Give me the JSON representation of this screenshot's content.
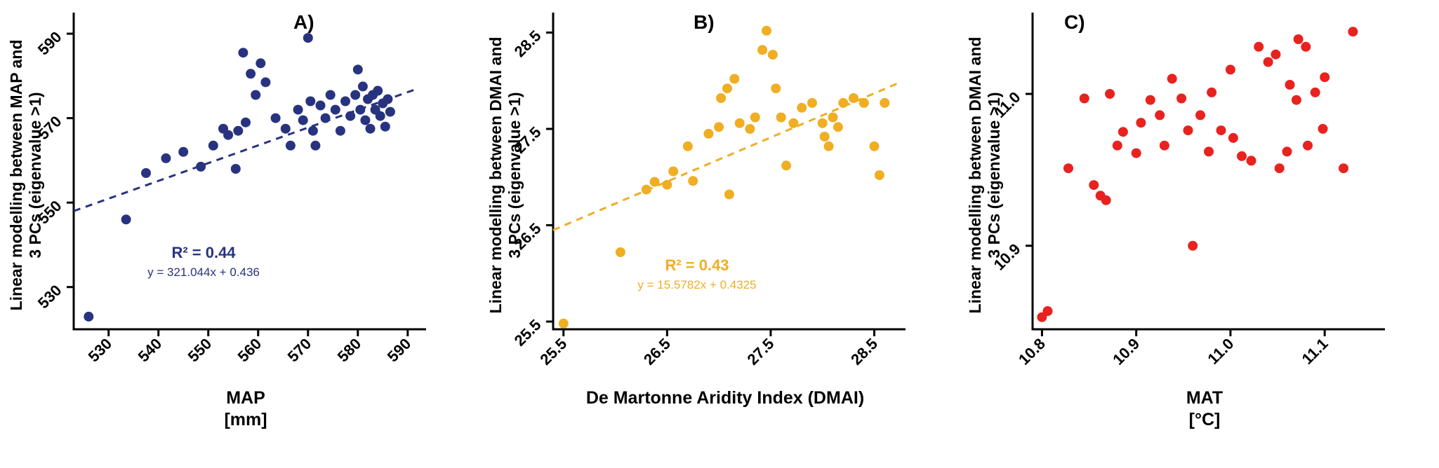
{
  "figure": {
    "background": "#ffffff"
  },
  "chart_data": [
    {
      "type": "scatter",
      "panel_label": "A)",
      "point_color": "#283380",
      "ylabel_line1": "Linear modelling between MAP and",
      "ylabel_line2": "3 PCs (eigenvalue >1)",
      "xlabel_line1": "MAP",
      "xlabel_line2": "[mm]",
      "xlim": [
        523,
        592
      ],
      "ylim": [
        520,
        593
      ],
      "xticks": [
        "530",
        "540",
        "550",
        "560",
        "570",
        "580",
        "590"
      ],
      "yticks": [
        "530",
        "550",
        "570",
        "590"
      ],
      "grid": false,
      "legend": "none",
      "trendline": {
        "x1": 523,
        "y1": 548,
        "x2": 592,
        "y2": 577,
        "style": "dashed"
      },
      "r2_label": "R² = 0.44",
      "equation": "y = 321.044x + 0.436",
      "points": [
        [
          526,
          523
        ],
        [
          533.5,
          546
        ],
        [
          537.5,
          557
        ],
        [
          541.5,
          560.5
        ],
        [
          545,
          562
        ],
        [
          548.5,
          558.5
        ],
        [
          551,
          563.5
        ],
        [
          553,
          567.5
        ],
        [
          554,
          566
        ],
        [
          555.5,
          558
        ],
        [
          556,
          567
        ],
        [
          557,
          585.5
        ],
        [
          557.5,
          569
        ],
        [
          558.5,
          580.5
        ],
        [
          559.5,
          575.5
        ],
        [
          560.5,
          583
        ],
        [
          561.5,
          578.5
        ],
        [
          563.5,
          570
        ],
        [
          565.5,
          567.5
        ],
        [
          566.5,
          563.5
        ],
        [
          568,
          572
        ],
        [
          569,
          569.5
        ],
        [
          570,
          589
        ],
        [
          570.5,
          574
        ],
        [
          571,
          567
        ],
        [
          571.5,
          563.5
        ],
        [
          572.5,
          573
        ],
        [
          573.5,
          570
        ],
        [
          574.5,
          575.5
        ],
        [
          575.5,
          572
        ],
        [
          576.5,
          567
        ],
        [
          577.5,
          574
        ],
        [
          578.5,
          570.5
        ],
        [
          579.5,
          575.5
        ],
        [
          580,
          581.5
        ],
        [
          580.5,
          572
        ],
        [
          581,
          577.5
        ],
        [
          581.5,
          569.5
        ],
        [
          582,
          574.5
        ],
        [
          582.5,
          567.5
        ],
        [
          583,
          575.5
        ],
        [
          583.5,
          572
        ],
        [
          584,
          576.5
        ],
        [
          584.5,
          570.5
        ],
        [
          585,
          573.5
        ],
        [
          585.5,
          568
        ],
        [
          586,
          574.5
        ],
        [
          586.5,
          571.5
        ]
      ]
    },
    {
      "type": "scatter",
      "panel_label": "B)",
      "point_color": "#F0AE23",
      "ylabel_line1": "Linear modelling between DMAI and",
      "ylabel_line2": "3 PCs (eigenvalue >1)",
      "xlabel_line1": "De Martonne Aridity Index (DMAI)",
      "xlabel_line2": "",
      "xlim": [
        25.4,
        28.72
      ],
      "ylim": [
        25.42,
        28.62
      ],
      "xticks": [
        "25.5",
        "26.5",
        "27.5",
        "28.5"
      ],
      "yticks": [
        "25.5",
        "26.5",
        "27.5",
        "28.5"
      ],
      "grid": false,
      "legend": "none",
      "trendline": {
        "x1": 25.4,
        "y1": 26.45,
        "x2": 28.72,
        "y2": 27.97,
        "style": "dashed"
      },
      "r2_label": "R² = 0.43",
      "equation": "y = 15.5782x + 0.4325",
      "points": [
        [
          25.5,
          25.48
        ],
        [
          26.05,
          26.22
        ],
        [
          26.3,
          26.87
        ],
        [
          26.38,
          26.95
        ],
        [
          26.5,
          26.92
        ],
        [
          26.56,
          27.06
        ],
        [
          26.7,
          27.32
        ],
        [
          26.75,
          26.96
        ],
        [
          26.9,
          27.45
        ],
        [
          27.0,
          27.52
        ],
        [
          27.02,
          27.82
        ],
        [
          27.08,
          27.92
        ],
        [
          27.1,
          26.82
        ],
        [
          27.15,
          28.02
        ],
        [
          27.2,
          27.56
        ],
        [
          27.3,
          27.5
        ],
        [
          27.35,
          27.62
        ],
        [
          27.42,
          28.32
        ],
        [
          27.46,
          28.52
        ],
        [
          27.52,
          28.27
        ],
        [
          27.55,
          27.92
        ],
        [
          27.6,
          27.62
        ],
        [
          27.65,
          27.12
        ],
        [
          27.72,
          27.56
        ],
        [
          27.8,
          27.72
        ],
        [
          27.9,
          27.77
        ],
        [
          28.0,
          27.56
        ],
        [
          28.02,
          27.42
        ],
        [
          28.06,
          27.32
        ],
        [
          28.1,
          27.62
        ],
        [
          28.15,
          27.52
        ],
        [
          28.2,
          27.77
        ],
        [
          28.3,
          27.82
        ],
        [
          28.4,
          27.77
        ],
        [
          28.5,
          27.32
        ],
        [
          28.55,
          27.02
        ],
        [
          28.6,
          27.77
        ]
      ]
    },
    {
      "type": "scatter",
      "panel_label": "C)",
      "point_color": "#E8221F",
      "ylabel_line1": "Linear modelling between DMAI and",
      "ylabel_line2": "3 PCs (eigenvalue >1)",
      "xlabel_line1": "MAT",
      "xlabel_line2": "[°C]",
      "xlim": [
        10.79,
        11.155
      ],
      "ylim": [
        10.845,
        11.048
      ],
      "xticks": [
        "10.8",
        "10.9",
        "11.0",
        "11.1"
      ],
      "yticks": [
        "10.9",
        "11.0"
      ],
      "grid": false,
      "legend": "none",
      "points": [
        [
          10.8,
          10.853
        ],
        [
          10.806,
          10.857
        ],
        [
          10.828,
          10.951
        ],
        [
          10.845,
          10.997
        ],
        [
          10.855,
          10.94
        ],
        [
          10.862,
          10.933
        ],
        [
          10.868,
          10.93
        ],
        [
          10.872,
          11.0
        ],
        [
          10.88,
          10.966
        ],
        [
          10.886,
          10.975
        ],
        [
          10.9,
          10.961
        ],
        [
          10.905,
          10.981
        ],
        [
          10.915,
          10.996
        ],
        [
          10.925,
          10.986
        ],
        [
          10.93,
          10.966
        ],
        [
          10.938,
          11.01
        ],
        [
          10.948,
          10.997
        ],
        [
          10.955,
          10.976
        ],
        [
          10.96,
          10.9
        ],
        [
          10.968,
          10.986
        ],
        [
          10.977,
          10.962
        ],
        [
          10.98,
          11.001
        ],
        [
          10.99,
          10.976
        ],
        [
          11.0,
          11.016
        ],
        [
          11.003,
          10.971
        ],
        [
          11.012,
          10.959
        ],
        [
          11.022,
          10.956
        ],
        [
          11.03,
          11.031
        ],
        [
          11.04,
          11.021
        ],
        [
          11.048,
          11.026
        ],
        [
          11.052,
          10.951
        ],
        [
          11.06,
          10.962
        ],
        [
          11.063,
          11.006
        ],
        [
          11.07,
          10.996
        ],
        [
          11.072,
          11.036
        ],
        [
          11.08,
          11.031
        ],
        [
          11.082,
          10.966
        ],
        [
          11.09,
          11.001
        ],
        [
          11.098,
          10.977
        ],
        [
          11.1,
          11.011
        ],
        [
          11.12,
          10.951
        ],
        [
          11.13,
          11.041
        ]
      ]
    }
  ]
}
